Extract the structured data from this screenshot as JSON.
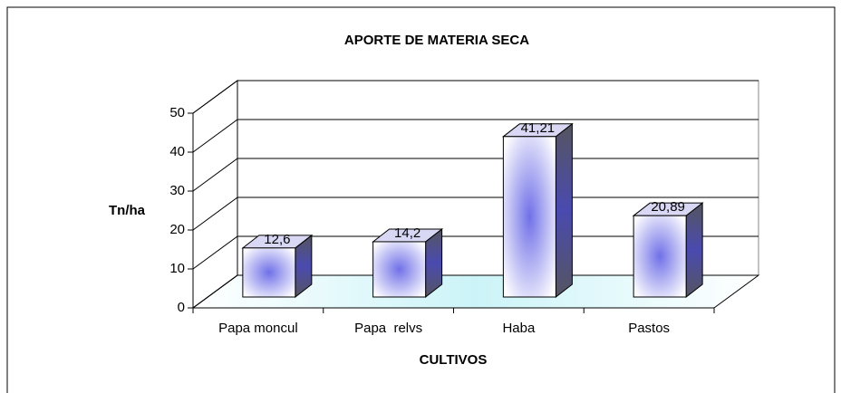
{
  "chart_data": {
    "type": "bar",
    "title": "APORTE DE MATERIA SECA",
    "x_label": "CULTIVOS",
    "y_label": "Tn/ha",
    "categories": [
      "Papa moncul",
      "Papa  relvs",
      "Haba",
      "Pastos"
    ],
    "values": [
      12.6,
      14.2,
      41.21,
      20.89
    ],
    "value_labels": [
      "12,6",
      "14,2",
      "41,21",
      "20,89"
    ],
    "color": "#6a6ae0",
    "ylim": [
      0,
      50
    ],
    "yticks": [
      0,
      10,
      20,
      30,
      40,
      50
    ],
    "grid": true
  }
}
